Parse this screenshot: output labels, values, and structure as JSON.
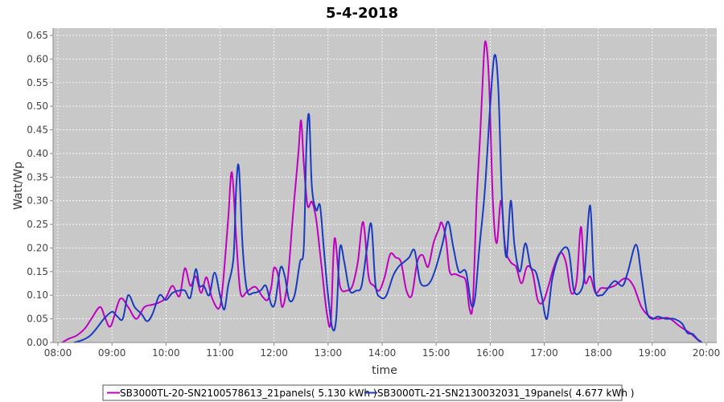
{
  "chart_data": {
    "type": "line",
    "title": "5-4-2018",
    "xlabel": "time",
    "ylabel": "Watt/Wp",
    "xlim": [
      8.0,
      20.0
    ],
    "ylim": [
      0.0,
      0.65
    ],
    "x_ticks": [
      {
        "value": 8,
        "label": "08:00"
      },
      {
        "value": 9,
        "label": "09:00"
      },
      {
        "value": 10,
        "label": "10:00"
      },
      {
        "value": 11,
        "label": "11:00"
      },
      {
        "value": 12,
        "label": "12:00"
      },
      {
        "value": 13,
        "label": "13:00"
      },
      {
        "value": 14,
        "label": "14:00"
      },
      {
        "value": 15,
        "label": "15:00"
      },
      {
        "value": 16,
        "label": "16:00"
      },
      {
        "value": 17,
        "label": "17:00"
      },
      {
        "value": 18,
        "label": "18:00"
      },
      {
        "value": 19,
        "label": "19:00"
      },
      {
        "value": 20,
        "label": "20:00"
      }
    ],
    "y_ticks": [
      {
        "value": 0.0,
        "label": "0.00"
      },
      {
        "value": 0.05,
        "label": "0.05"
      },
      {
        "value": 0.1,
        "label": "0.10"
      },
      {
        "value": 0.15,
        "label": "0.15"
      },
      {
        "value": 0.2,
        "label": "0.20"
      },
      {
        "value": 0.25,
        "label": "0.25"
      },
      {
        "value": 0.3,
        "label": "0.30"
      },
      {
        "value": 0.35,
        "label": "0.35"
      },
      {
        "value": 0.4,
        "label": "0.40"
      },
      {
        "value": 0.45,
        "label": "0.45"
      },
      {
        "value": 0.5,
        "label": "0.50"
      },
      {
        "value": 0.55,
        "label": "0.55"
      },
      {
        "value": 0.6,
        "label": "0.60"
      },
      {
        "value": 0.65,
        "label": "0.65"
      }
    ],
    "grid": true,
    "legend_position": "bottom",
    "plot_background": "#c8c8c8",
    "series": [
      {
        "name": "SB3000TL-20-SN2100578613_21panels( 5.130 kWh )",
        "color": "#c000c0",
        "points": [
          [
            8.08,
            0.0
          ],
          [
            8.2,
            0.008
          ],
          [
            8.35,
            0.015
          ],
          [
            8.5,
            0.03
          ],
          [
            8.62,
            0.05
          ],
          [
            8.78,
            0.075
          ],
          [
            8.88,
            0.05
          ],
          [
            8.98,
            0.035
          ],
          [
            9.15,
            0.092
          ],
          [
            9.3,
            0.075
          ],
          [
            9.45,
            0.05
          ],
          [
            9.6,
            0.075
          ],
          [
            9.75,
            0.08
          ],
          [
            9.88,
            0.085
          ],
          [
            10.0,
            0.095
          ],
          [
            10.12,
            0.12
          ],
          [
            10.25,
            0.098
          ],
          [
            10.35,
            0.157
          ],
          [
            10.45,
            0.12
          ],
          [
            10.55,
            0.14
          ],
          [
            10.65,
            0.105
          ],
          [
            10.75,
            0.138
          ],
          [
            10.85,
            0.095
          ],
          [
            10.98,
            0.072
          ],
          [
            11.05,
            0.12
          ],
          [
            11.15,
            0.26
          ],
          [
            11.22,
            0.36
          ],
          [
            11.3,
            0.22
          ],
          [
            11.38,
            0.105
          ],
          [
            11.5,
            0.108
          ],
          [
            11.65,
            0.118
          ],
          [
            11.78,
            0.098
          ],
          [
            11.88,
            0.09
          ],
          [
            11.95,
            0.118
          ],
          [
            12.0,
            0.158
          ],
          [
            12.08,
            0.14
          ],
          [
            12.15,
            0.075
          ],
          [
            12.25,
            0.13
          ],
          [
            12.35,
            0.27
          ],
          [
            12.45,
            0.4
          ],
          [
            12.5,
            0.47
          ],
          [
            12.55,
            0.38
          ],
          [
            12.62,
            0.29
          ],
          [
            12.7,
            0.298
          ],
          [
            12.78,
            0.26
          ],
          [
            12.88,
            0.16
          ],
          [
            12.98,
            0.06
          ],
          [
            13.05,
            0.045
          ],
          [
            13.12,
            0.22
          ],
          [
            13.22,
            0.12
          ],
          [
            13.35,
            0.11
          ],
          [
            13.45,
            0.12
          ],
          [
            13.55,
            0.17
          ],
          [
            13.65,
            0.255
          ],
          [
            13.75,
            0.14
          ],
          [
            13.85,
            0.12
          ],
          [
            13.95,
            0.11
          ],
          [
            14.05,
            0.14
          ],
          [
            14.15,
            0.187
          ],
          [
            14.25,
            0.18
          ],
          [
            14.35,
            0.17
          ],
          [
            14.45,
            0.11
          ],
          [
            14.55,
            0.1
          ],
          [
            14.65,
            0.17
          ],
          [
            14.75,
            0.185
          ],
          [
            14.85,
            0.16
          ],
          [
            14.95,
            0.21
          ],
          [
            15.05,
            0.24
          ],
          [
            15.1,
            0.254
          ],
          [
            15.18,
            0.22
          ],
          [
            15.25,
            0.15
          ],
          [
            15.35,
            0.145
          ],
          [
            15.45,
            0.14
          ],
          [
            15.55,
            0.13
          ],
          [
            15.62,
            0.07
          ],
          [
            15.68,
            0.085
          ],
          [
            15.75,
            0.3
          ],
          [
            15.82,
            0.45
          ],
          [
            15.88,
            0.6
          ],
          [
            15.92,
            0.635
          ],
          [
            15.98,
            0.55
          ],
          [
            16.05,
            0.3
          ],
          [
            16.12,
            0.21
          ],
          [
            16.2,
            0.3
          ],
          [
            16.28,
            0.2
          ],
          [
            16.38,
            0.17
          ],
          [
            16.48,
            0.16
          ],
          [
            16.58,
            0.125
          ],
          [
            16.68,
            0.16
          ],
          [
            16.78,
            0.15
          ],
          [
            16.88,
            0.09
          ],
          [
            16.98,
            0.086
          ],
          [
            17.08,
            0.12
          ],
          [
            17.18,
            0.16
          ],
          [
            17.3,
            0.19
          ],
          [
            17.4,
            0.17
          ],
          [
            17.5,
            0.105
          ],
          [
            17.6,
            0.13
          ],
          [
            17.68,
            0.245
          ],
          [
            17.75,
            0.13
          ],
          [
            17.85,
            0.14
          ],
          [
            17.95,
            0.105
          ],
          [
            18.05,
            0.115
          ],
          [
            18.15,
            0.115
          ],
          [
            18.3,
            0.12
          ],
          [
            18.5,
            0.136
          ],
          [
            18.65,
            0.12
          ],
          [
            18.8,
            0.075
          ],
          [
            18.95,
            0.055
          ],
          [
            19.1,
            0.05
          ],
          [
            19.3,
            0.052
          ],
          [
            19.5,
            0.035
          ],
          [
            19.7,
            0.02
          ],
          [
            19.82,
            0.008
          ],
          [
            19.9,
            0.002
          ]
        ]
      },
      {
        "name": "SB3000TL-21-SN2130032031_19panels( 4.677 kWh )",
        "color": "#1a3bbf",
        "points": [
          [
            8.3,
            0.0
          ],
          [
            8.45,
            0.005
          ],
          [
            8.6,
            0.015
          ],
          [
            8.75,
            0.035
          ],
          [
            8.85,
            0.05
          ],
          [
            9.0,
            0.065
          ],
          [
            9.1,
            0.055
          ],
          [
            9.2,
            0.05
          ],
          [
            9.3,
            0.1
          ],
          [
            9.42,
            0.075
          ],
          [
            9.55,
            0.06
          ],
          [
            9.65,
            0.045
          ],
          [
            9.75,
            0.06
          ],
          [
            9.88,
            0.1
          ],
          [
            10.0,
            0.09
          ],
          [
            10.12,
            0.105
          ],
          [
            10.25,
            0.11
          ],
          [
            10.35,
            0.11
          ],
          [
            10.45,
            0.095
          ],
          [
            10.55,
            0.155
          ],
          [
            10.62,
            0.12
          ],
          [
            10.7,
            0.12
          ],
          [
            10.8,
            0.1
          ],
          [
            10.9,
            0.148
          ],
          [
            11.0,
            0.1
          ],
          [
            11.08,
            0.07
          ],
          [
            11.15,
            0.12
          ],
          [
            11.25,
            0.18
          ],
          [
            11.3,
            0.33
          ],
          [
            11.35,
            0.37
          ],
          [
            11.42,
            0.2
          ],
          [
            11.5,
            0.11
          ],
          [
            11.62,
            0.105
          ],
          [
            11.75,
            0.11
          ],
          [
            11.85,
            0.12
          ],
          [
            11.95,
            0.08
          ],
          [
            12.02,
            0.085
          ],
          [
            12.12,
            0.158
          ],
          [
            12.2,
            0.14
          ],
          [
            12.28,
            0.09
          ],
          [
            12.38,
            0.1
          ],
          [
            12.48,
            0.17
          ],
          [
            12.55,
            0.2
          ],
          [
            12.6,
            0.42
          ],
          [
            12.65,
            0.48
          ],
          [
            12.7,
            0.33
          ],
          [
            12.78,
            0.28
          ],
          [
            12.85,
            0.29
          ],
          [
            12.92,
            0.2
          ],
          [
            13.0,
            0.1
          ],
          [
            13.08,
            0.03
          ],
          [
            13.15,
            0.05
          ],
          [
            13.22,
            0.2
          ],
          [
            13.3,
            0.17
          ],
          [
            13.4,
            0.11
          ],
          [
            13.52,
            0.11
          ],
          [
            13.62,
            0.12
          ],
          [
            13.72,
            0.2
          ],
          [
            13.8,
            0.25
          ],
          [
            13.88,
            0.12
          ],
          [
            13.98,
            0.095
          ],
          [
            14.08,
            0.1
          ],
          [
            14.2,
            0.14
          ],
          [
            14.3,
            0.16
          ],
          [
            14.4,
            0.17
          ],
          [
            14.5,
            0.18
          ],
          [
            14.6,
            0.195
          ],
          [
            14.7,
            0.13
          ],
          [
            14.8,
            0.12
          ],
          [
            14.9,
            0.13
          ],
          [
            15.0,
            0.16
          ],
          [
            15.12,
            0.21
          ],
          [
            15.22,
            0.256
          ],
          [
            15.32,
            0.2
          ],
          [
            15.42,
            0.15
          ],
          [
            15.55,
            0.15
          ],
          [
            15.65,
            0.08
          ],
          [
            15.72,
            0.095
          ],
          [
            15.8,
            0.2
          ],
          [
            15.9,
            0.32
          ],
          [
            16.0,
            0.5
          ],
          [
            16.08,
            0.608
          ],
          [
            16.15,
            0.54
          ],
          [
            16.22,
            0.3
          ],
          [
            16.3,
            0.18
          ],
          [
            16.38,
            0.3
          ],
          [
            16.45,
            0.205
          ],
          [
            16.55,
            0.15
          ],
          [
            16.65,
            0.21
          ],
          [
            16.75,
            0.16
          ],
          [
            16.85,
            0.148
          ],
          [
            16.95,
            0.1
          ],
          [
            17.05,
            0.05
          ],
          [
            17.15,
            0.135
          ],
          [
            17.3,
            0.19
          ],
          [
            17.45,
            0.195
          ],
          [
            17.55,
            0.11
          ],
          [
            17.68,
            0.11
          ],
          [
            17.75,
            0.15
          ],
          [
            17.85,
            0.29
          ],
          [
            17.93,
            0.12
          ],
          [
            18.05,
            0.1
          ],
          [
            18.15,
            0.11
          ],
          [
            18.3,
            0.13
          ],
          [
            18.45,
            0.12
          ],
          [
            18.55,
            0.15
          ],
          [
            18.7,
            0.207
          ],
          [
            18.8,
            0.14
          ],
          [
            18.9,
            0.065
          ],
          [
            19.0,
            0.05
          ],
          [
            19.1,
            0.055
          ],
          [
            19.25,
            0.05
          ],
          [
            19.4,
            0.05
          ],
          [
            19.55,
            0.04
          ],
          [
            19.65,
            0.02
          ],
          [
            19.75,
            0.018
          ],
          [
            19.85,
            0.005
          ],
          [
            19.92,
            0.0
          ]
        ]
      }
    ]
  }
}
